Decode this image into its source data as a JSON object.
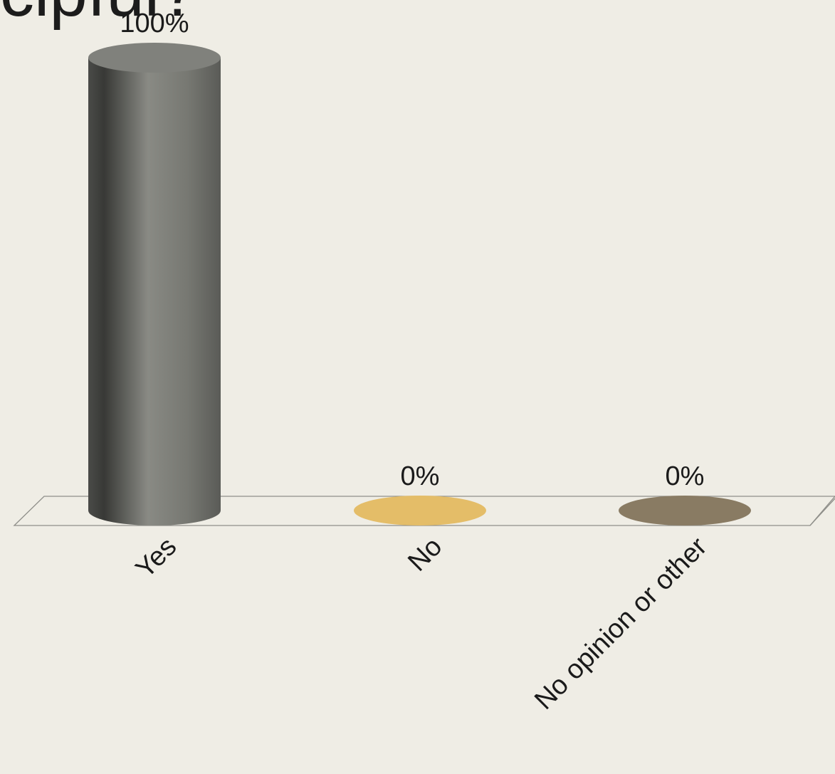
{
  "slide": {
    "title_fragment": "cipful?"
  },
  "chart_data": {
    "type": "bar",
    "style": "3d-cylinder",
    "categories": [
      "Yes",
      "No",
      "No opinion or other"
    ],
    "values": [
      100,
      0,
      0
    ],
    "value_labels": [
      "100%",
      "0%",
      "0%"
    ],
    "colors": [
      "#6e6f6b",
      "#e4bd68",
      "#897b63"
    ],
    "ylim": [
      0,
      100
    ],
    "grid": false,
    "legend": "none"
  }
}
